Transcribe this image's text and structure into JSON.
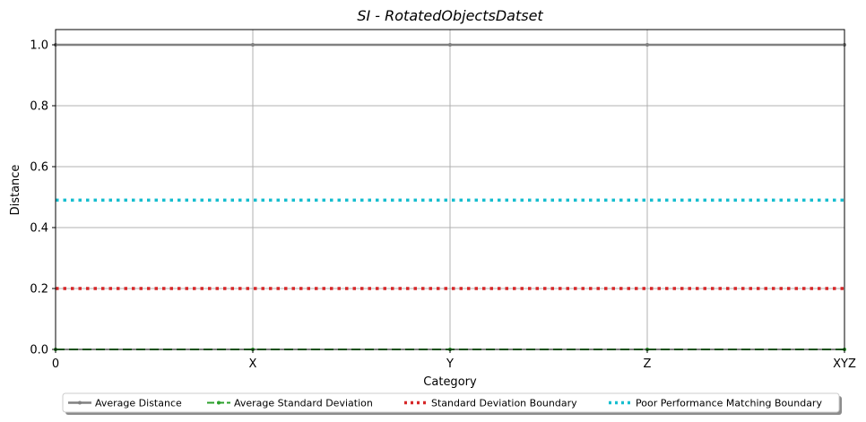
{
  "chart_data": {
    "type": "line",
    "title": "SI - RotatedObjectsDatset",
    "xlabel": "Category",
    "ylabel": "Distance",
    "categories": [
      "0",
      "X",
      "Y",
      "Z",
      "XYZ"
    ],
    "ylim": [
      0.0,
      1.05
    ],
    "yticks": [
      "0.0",
      "0.2",
      "0.4",
      "0.6",
      "0.8",
      "1.0"
    ],
    "grid": true,
    "legend_position": "bottom-center",
    "series": [
      {
        "name": "Average Distance",
        "values": [
          1.0,
          1.0,
          1.0,
          1.0,
          1.0
        ],
        "color": "#808080",
        "style": "solid-marker"
      },
      {
        "name": "Average Standard Deviation",
        "values": [
          0.0,
          0.0,
          0.0,
          0.0,
          0.0
        ],
        "color": "#2ca02c",
        "style": "dashed-marker"
      },
      {
        "name": "Standard Deviation Boundary",
        "values": [
          0.2,
          0.2,
          0.2,
          0.2,
          0.2
        ],
        "color": "#d62728",
        "style": "dotted"
      },
      {
        "name": "Poor Performance Matching Boundary",
        "values": [
          0.49,
          0.49,
          0.49,
          0.49,
          0.49
        ],
        "color": "#17becf",
        "style": "dotted"
      }
    ]
  }
}
